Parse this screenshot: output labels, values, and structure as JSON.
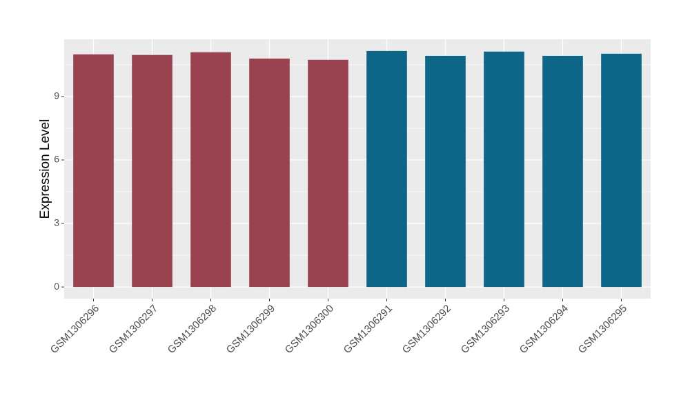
{
  "chart_data": {
    "type": "bar",
    "y_label": "Expression Level",
    "categories": [
      "GSM1306296",
      "GSM1306297",
      "GSM1306298",
      "GSM1306299",
      "GSM1306300",
      "GSM1306291",
      "GSM1306292",
      "GSM1306293",
      "GSM1306294",
      "GSM1306295"
    ],
    "values": [
      10.99,
      10.96,
      11.09,
      10.79,
      10.73,
      11.15,
      10.92,
      11.12,
      10.92,
      11.02
    ],
    "colors": [
      "#9a4350",
      "#9a4350",
      "#9a4350",
      "#9a4350",
      "#9a4350",
      "#0d6587",
      "#0d6587",
      "#0d6587",
      "#0d6587",
      "#0d6587"
    ],
    "ylim": [
      -0.55,
      11.7
    ],
    "yticks": [
      0,
      3,
      6,
      9
    ],
    "grid": true
  }
}
